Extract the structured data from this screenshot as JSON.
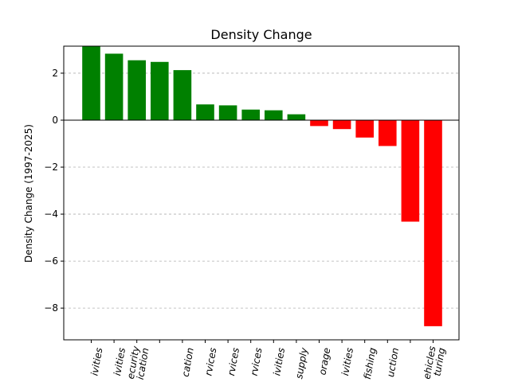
{
  "chart_data": {
    "type": "bar",
    "title": "Density Change",
    "xlabel": "",
    "ylabel": "Density Change (1997-2025)",
    "ylim": [
      -9.35,
      3.15
    ],
    "yticks": [
      2,
      0,
      -2,
      -4,
      -6,
      -8
    ],
    "grid": "y-dashed",
    "categories": [
      [
        "ivities"
      ],
      [
        "ivities"
      ],
      [
        "ecurity",
        "ication"
      ],
      [
        ""
      ],
      [
        "cation"
      ],
      [
        "rvices"
      ],
      [
        "rvices"
      ],
      [
        "rvices"
      ],
      [
        "ivities"
      ],
      [
        "supply"
      ],
      [
        "orage"
      ],
      [
        "ivities"
      ],
      [
        "fishing"
      ],
      [
        "uction"
      ],
      [
        ""
      ],
      [
        "ehicles",
        "turing"
      ]
    ],
    "values": [
      3.15,
      2.83,
      2.55,
      2.48,
      2.13,
      0.67,
      0.63,
      0.45,
      0.42,
      0.25,
      -0.25,
      -0.38,
      -0.74,
      -1.1,
      -4.32,
      -8.77
    ],
    "colors": {
      "positive": "#008000",
      "negative": "#ff0000"
    }
  }
}
